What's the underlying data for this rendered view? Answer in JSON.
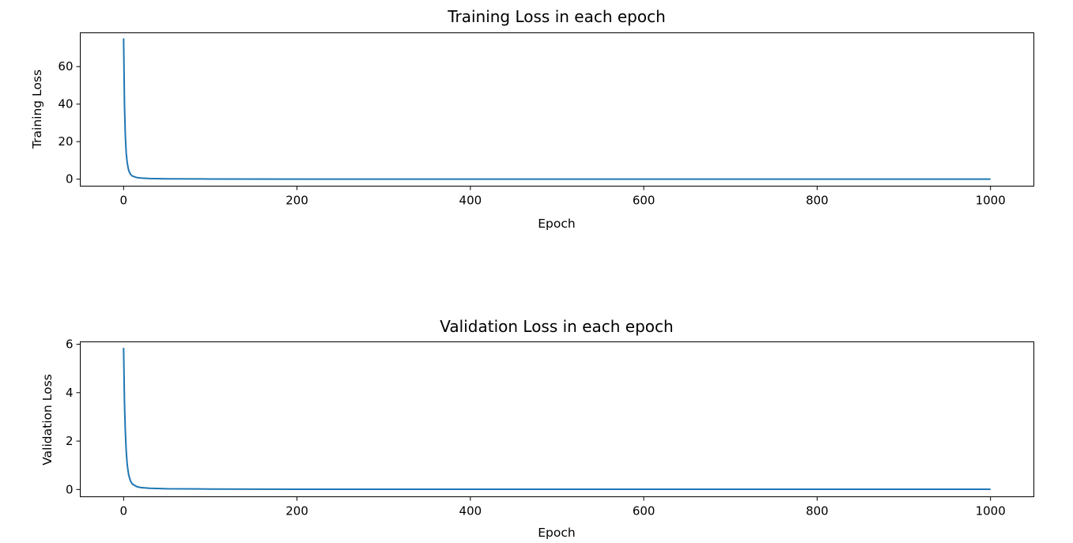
{
  "chart_data": [
    {
      "type": "line",
      "title": "Training Loss in each epoch",
      "xlabel": "Epoch",
      "ylabel": "Training Loss",
      "xlim": [
        -50,
        1050
      ],
      "ylim": [
        -3.7,
        78
      ],
      "xticks": [
        0,
        200,
        400,
        600,
        800,
        1000
      ],
      "yticks": [
        0,
        20,
        40,
        60
      ],
      "grid": false,
      "line_color": "#1f77b4",
      "series": [
        {
          "x": [
            0,
            1,
            2,
            3,
            4,
            5,
            6,
            8,
            10,
            15,
            20,
            30,
            50,
            100,
            200,
            400,
            600,
            800,
            1000
          ],
          "values": [
            75,
            40,
            23,
            14,
            9.5,
            6.5,
            4.5,
            2.6,
            1.7,
            0.9,
            0.6,
            0.35,
            0.2,
            0.1,
            0.06,
            0.04,
            0.03,
            0.02,
            0.02
          ]
        }
      ]
    },
    {
      "type": "line",
      "title": "Validation Loss in each epoch",
      "xlabel": "Epoch",
      "ylabel": "Validation Loss",
      "xlim": [
        -50,
        1050
      ],
      "ylim": [
        -0.3,
        6.1
      ],
      "xticks": [
        0,
        200,
        400,
        600,
        800,
        1000
      ],
      "yticks": [
        0,
        2,
        4,
        6
      ],
      "grid": false,
      "line_color": "#1f77b4",
      "series": [
        {
          "x": [
            0,
            1,
            2,
            3,
            4,
            5,
            6,
            8,
            10,
            15,
            20,
            30,
            50,
            100,
            200,
            400,
            600,
            800,
            1000
          ],
          "values": [
            5.85,
            3.6,
            2.4,
            1.6,
            1.1,
            0.8,
            0.58,
            0.35,
            0.23,
            0.12,
            0.08,
            0.05,
            0.03,
            0.02,
            0.01,
            0.01,
            0.01,
            0.01,
            0.01
          ]
        }
      ]
    }
  ]
}
